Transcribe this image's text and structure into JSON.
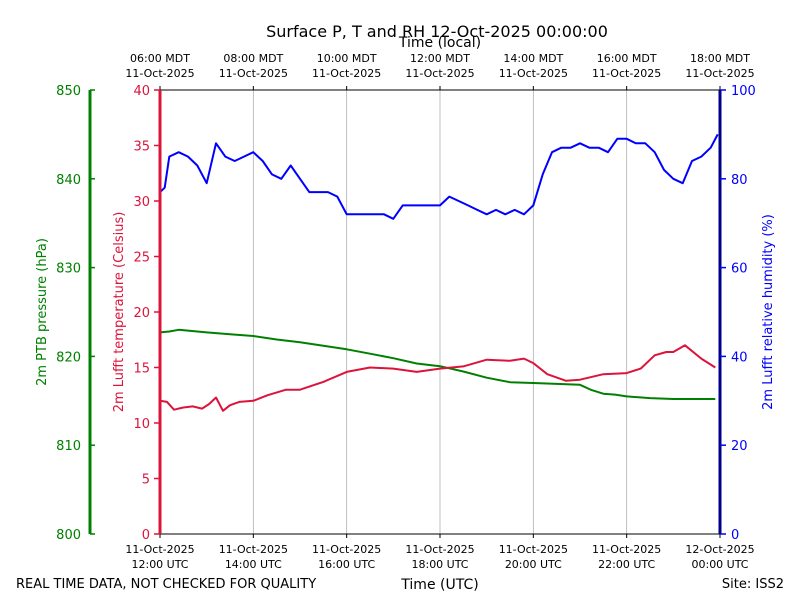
{
  "chart_data": {
    "type": "line",
    "title": "Surface P, T and RH 12-Oct-2025 00:00:00",
    "top_axis_label": "Time (local)",
    "xlabel": "Time (UTC)",
    "x_range_hours_utc": [
      12,
      24
    ],
    "grid": "vertical",
    "x_ticks_bottom": [
      {
        "hour": 12,
        "l1": "11-Oct-2025",
        "l2": "12:00 UTC"
      },
      {
        "hour": 14,
        "l1": "11-Oct-2025",
        "l2": "14:00 UTC"
      },
      {
        "hour": 16,
        "l1": "11-Oct-2025",
        "l2": "16:00 UTC"
      },
      {
        "hour": 18,
        "l1": "11-Oct-2025",
        "l2": "18:00 UTC"
      },
      {
        "hour": 20,
        "l1": "11-Oct-2025",
        "l2": "20:00 UTC"
      },
      {
        "hour": 22,
        "l1": "11-Oct-2025",
        "l2": "22:00 UTC"
      },
      {
        "hour": 24,
        "l1": "12-Oct-2025",
        "l2": "00:00 UTC"
      }
    ],
    "x_ticks_top": [
      {
        "hour": 12,
        "l1": "06:00 MDT",
        "l2": "11-Oct-2025"
      },
      {
        "hour": 14,
        "l1": "08:00 MDT",
        "l2": "11-Oct-2025"
      },
      {
        "hour": 16,
        "l1": "10:00 MDT",
        "l2": "11-Oct-2025"
      },
      {
        "hour": 18,
        "l1": "12:00 MDT",
        "l2": "11-Oct-2025"
      },
      {
        "hour": 20,
        "l1": "14:00 MDT",
        "l2": "11-Oct-2025"
      },
      {
        "hour": 22,
        "l1": "16:00 MDT",
        "l2": "11-Oct-2025"
      },
      {
        "hour": 24,
        "l1": "18:00 MDT",
        "l2": "11-Oct-2025"
      }
    ],
    "axes": {
      "pressure": {
        "label": "2m PTB pressure (hPa)",
        "ylim": [
          800,
          850
        ],
        "ticks": [
          800,
          810,
          820,
          830,
          840,
          850
        ],
        "color": "#008000"
      },
      "temperature": {
        "label": "2m Lufft temperature (Celsius)",
        "ylim": [
          0,
          40
        ],
        "ticks": [
          0,
          5,
          10,
          15,
          20,
          25,
          30,
          35,
          40
        ],
        "color": "#dc143c"
      },
      "humidity": {
        "label": "2m Lufft relative humidity (%)",
        "ylim": [
          0,
          100
        ],
        "ticks": [
          0,
          20,
          40,
          60,
          80,
          100
        ],
        "color": "#0000ff"
      }
    },
    "series": [
      {
        "axis": "pressure",
        "color": "#008000",
        "x": [
          12.0,
          12.2,
          12.4,
          12.6,
          12.8,
          13.0,
          13.5,
          14.0,
          14.5,
          15.0,
          15.5,
          16.0,
          16.5,
          17.0,
          17.5,
          18.0,
          18.5,
          19.0,
          19.5,
          20.0,
          20.5,
          21.0,
          21.25,
          21.5,
          21.75,
          22.0,
          22.5,
          23.0,
          23.5,
          23.9
        ],
        "y": [
          822.7,
          822.8,
          823.0,
          822.9,
          822.8,
          822.7,
          822.5,
          822.3,
          821.9,
          821.6,
          821.2,
          820.8,
          820.3,
          819.8,
          819.2,
          818.9,
          818.3,
          817.6,
          817.1,
          817.0,
          816.9,
          816.8,
          816.2,
          815.8,
          815.7,
          815.5,
          815.3,
          815.2,
          815.2,
          815.2
        ]
      },
      {
        "axis": "temperature",
        "color": "#dc143c",
        "x": [
          12.0,
          12.15,
          12.3,
          12.5,
          12.7,
          12.9,
          13.05,
          13.2,
          13.35,
          13.5,
          13.7,
          14.0,
          14.3,
          14.7,
          15.0,
          15.5,
          16.0,
          16.5,
          17.0,
          17.5,
          18.0,
          18.5,
          19.0,
          19.5,
          19.8,
          20.0,
          20.3,
          20.7,
          21.0,
          21.5,
          22.0,
          22.3,
          22.6,
          22.85,
          23.0,
          23.25,
          23.6,
          23.9
        ],
        "y": [
          12.0,
          11.9,
          11.2,
          11.4,
          11.5,
          11.3,
          11.7,
          12.3,
          11.1,
          11.6,
          11.9,
          12.0,
          12.5,
          13.0,
          13.0,
          13.7,
          14.6,
          15.0,
          14.9,
          14.6,
          14.9,
          15.1,
          15.7,
          15.6,
          15.8,
          15.4,
          14.4,
          13.8,
          13.9,
          14.4,
          14.5,
          14.9,
          16.1,
          16.4,
          16.4,
          17.0,
          15.8,
          15.0
        ]
      },
      {
        "axis": "humidity",
        "color": "#0000ff",
        "x": [
          12.0,
          12.1,
          12.2,
          12.4,
          12.6,
          12.8,
          13.0,
          13.2,
          13.4,
          13.6,
          13.8,
          14.0,
          14.2,
          14.4,
          14.6,
          14.8,
          15.0,
          15.2,
          15.4,
          15.6,
          15.8,
          16.0,
          16.2,
          16.4,
          16.6,
          16.8,
          17.0,
          17.2,
          17.4,
          17.6,
          17.8,
          18.0,
          18.2,
          18.4,
          18.6,
          18.8,
          19.0,
          19.2,
          19.4,
          19.6,
          19.8,
          20.0,
          20.2,
          20.4,
          20.6,
          20.8,
          21.0,
          21.2,
          21.4,
          21.6,
          21.8,
          22.0,
          22.2,
          22.4,
          22.6,
          22.8,
          23.0,
          23.2,
          23.4,
          23.6,
          23.8,
          23.95
        ],
        "y": [
          77,
          78,
          85,
          86,
          85,
          83,
          79,
          88,
          85,
          84,
          85,
          86,
          84,
          81,
          80,
          83,
          80,
          77,
          77,
          77,
          76,
          72,
          72,
          72,
          72,
          72,
          71,
          74,
          74,
          74,
          74,
          74,
          76,
          75,
          74,
          73,
          72,
          73,
          72,
          73,
          72,
          74,
          81,
          86,
          87,
          87,
          88,
          87,
          87,
          86,
          89,
          89,
          88,
          88,
          86,
          82,
          80,
          79,
          84,
          85,
          87,
          90
        ]
      }
    ]
  },
  "footer": {
    "left": "REAL TIME DATA, NOT CHECKED FOR QUALITY",
    "right": "Site: ISS2"
  }
}
